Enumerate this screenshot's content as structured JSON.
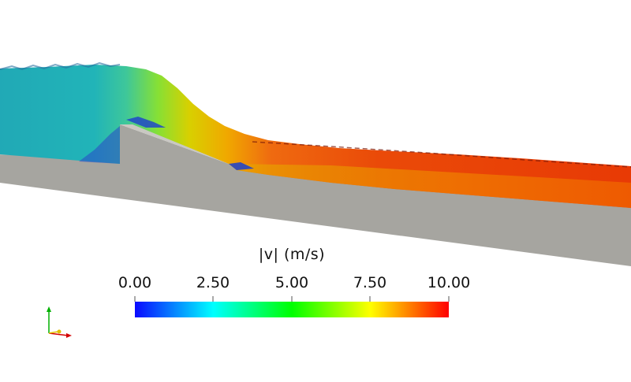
{
  "legend": {
    "title": "|v| (m/s)",
    "ticks": [
      "0.00",
      "2.50",
      "5.00",
      "7.50",
      "10.00"
    ],
    "range": [
      0,
      10
    ],
    "colormap": [
      "#0a0aff",
      "#00ffff",
      "#00ff00",
      "#ffff00",
      "#ff0000"
    ]
  },
  "scene": {
    "background": "#ffffff",
    "ground_color": "#a6a5a0",
    "ground_top_color": "#c9c8c2"
  },
  "axes_widget": {
    "x_color": "#d40000",
    "y_color": "#00b000",
    "z_color": "#e0c000"
  }
}
